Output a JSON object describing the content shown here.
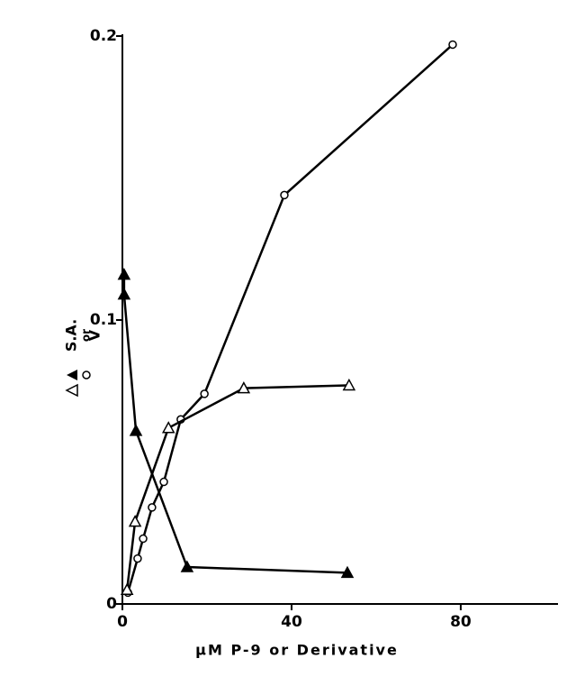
{
  "chart_data": {
    "type": "line",
    "x_label": "μM P-9 or Derivative",
    "y_label": [
      "S.A.",
      "or",
      "V"
    ],
    "xlim": [
      0,
      103
    ],
    "xticks": [
      0,
      40,
      80
    ],
    "ylim": [
      0,
      0.2
    ],
    "yticks": [
      0,
      0.1,
      0.2
    ],
    "series": [
      {
        "marker": "filled-triangle",
        "color": "#000000",
        "x": [
          0.4,
          0.4,
          3.2,
          15.3,
          53.2
        ],
        "values": [
          0.116,
          0.109,
          0.061,
          0.013,
          0.011
        ]
      },
      {
        "marker": "circle",
        "color": "#000000",
        "x": [
          1.3,
          3.6,
          4.9,
          7,
          9.8,
          13.8,
          19.4,
          38.3,
          78.1
        ],
        "values": [
          0.004,
          0.016,
          0.023,
          0.034,
          0.043,
          0.065,
          0.074,
          0.144,
          0.197
        ]
      },
      {
        "marker": "open-triangle",
        "color": "#000000",
        "x": [
          1.1,
          3,
          10.9,
          28.7,
          53.6
        ],
        "values": [
          0.005,
          0.029,
          0.062,
          0.076,
          0.077
        ]
      }
    ]
  }
}
